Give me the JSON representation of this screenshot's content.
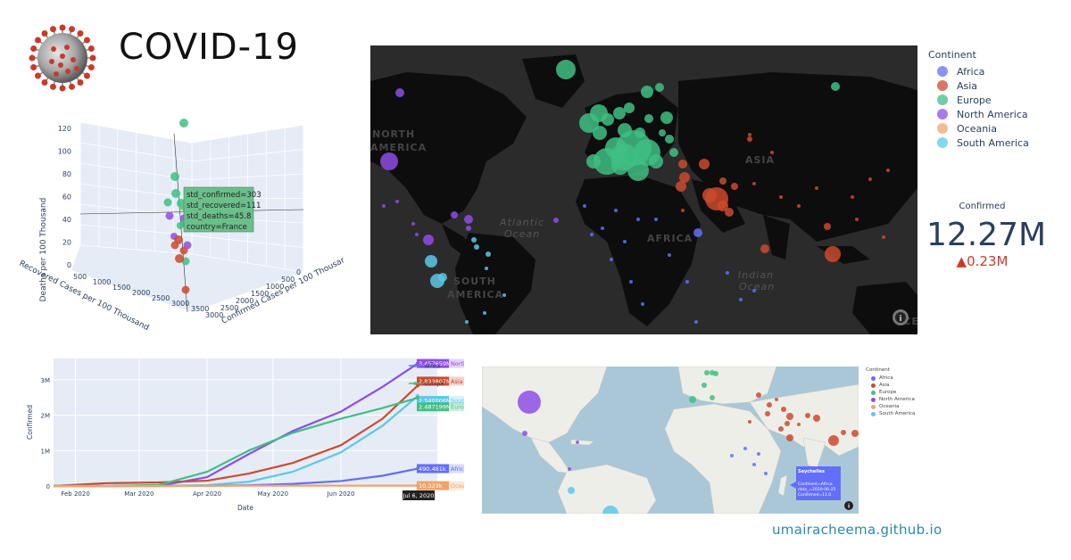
{
  "title": "COVID-19",
  "footer_link": "umairacheema.github.io",
  "colors": {
    "Africa": "#636efa",
    "Asia": "#cc4a2e",
    "Europe": "#3fbf84",
    "North America": "#8e4ee6",
    "Oceania": "#f0a46a",
    "South America": "#5cc8e8"
  },
  "legend": {
    "title": "Continent",
    "items": [
      "Africa",
      "Asia",
      "Europe",
      "North America",
      "Oceania",
      "South America"
    ]
  },
  "kpi": {
    "label": "Confirmed",
    "value": "12.27M",
    "delta": "▲0.23M"
  },
  "scatter3d": {
    "axis_z_label": "Deaths per 100 Thousand",
    "axis_x_label": "Recovered Cases per 100 Thousand",
    "axis_y_label": "Confirmed Cases per 100 Thousar",
    "z_ticks": [
      "120",
      "100",
      "80",
      "60",
      "40",
      "20",
      "0"
    ],
    "x_ticks": [
      "500",
      "1000",
      "1500",
      "2000",
      "2500",
      "3000",
      "3500"
    ],
    "y_ticks": [
      "0",
      "500",
      "1000",
      "1500",
      "2000",
      "2500",
      "3000"
    ],
    "tooltip": {
      "lines": [
        "std_confirmed=303",
        "std_recovered=111",
        "std_deaths=45.8",
        "country=France"
      ]
    }
  },
  "darkmap": {
    "labels": {
      "north_america": [
        "NORTH",
        "AMERICA"
      ],
      "atlantic": [
        "Atlantic",
        "Ocean"
      ],
      "africa": "AFRICA",
      "asia": "ASIA",
      "south_america": [
        "SOUTH",
        "AMERICA"
      ],
      "indian": [
        "Indian",
        "Ocean"
      ],
      "oce": "OCE"
    },
    "info_icon": "info-icon"
  },
  "chart_data": {
    "type": "line",
    "xlabel": "Date",
    "ylabel": "Confirmed",
    "x_ticks": [
      "Feb 2020",
      "Mar 2020",
      "Apr 2020",
      "May 2020",
      "Jun 2020",
      "Jul 6, 2020"
    ],
    "y_ticks": [
      "0",
      "1M",
      "2M",
      "3M"
    ],
    "ylim": [
      0,
      3600000
    ],
    "x": [
      "2020-01-22",
      "2020-02-15",
      "2020-03-10",
      "2020-04-01",
      "2020-04-20",
      "2020-05-10",
      "2020-06-01",
      "2020-06-20",
      "2020-07-06"
    ],
    "series": [
      {
        "name": "North America",
        "values": [
          0,
          20,
          1000,
          250000,
          900000,
          1550000,
          2100000,
          2800000,
          3457659
        ],
        "end_label": "3.457659M"
      },
      {
        "name": "Asia",
        "values": [
          600,
          80000,
          100000,
          150000,
          350000,
          650000,
          1150000,
          1900000,
          2833807
        ],
        "end_label": "2.833807M"
      },
      {
        "name": "South America",
        "values": [
          0,
          0,
          100,
          20000,
          120000,
          400000,
          950000,
          1700000,
          2540006
        ],
        "end_label": "2.540006M"
      },
      {
        "name": "Europe",
        "values": [
          0,
          100,
          30000,
          400000,
          1000000,
          1500000,
          1900000,
          2200000,
          2487199
        ],
        "end_label": "2.487199M"
      },
      {
        "name": "Africa",
        "values": [
          0,
          0,
          100,
          6000,
          20000,
          60000,
          140000,
          290000,
          490481
        ],
        "end_label": "490.481k"
      },
      {
        "name": "Oceania",
        "values": [
          0,
          0,
          50,
          5000,
          8000,
          8500,
          9000,
          9500,
          10323
        ],
        "end_label": "10.323k"
      }
    ],
    "hover_date_label": "Jul 6, 2020"
  },
  "lightmap": {
    "legend_title": "Continent",
    "legend_items": [
      "Africa",
      "Asia",
      "Europe",
      "North America",
      "Oceania",
      "South America"
    ],
    "tooltip": {
      "title": "Seychelles",
      "lines": [
        "Continent=Africa",
        "date_=2020-06-25",
        "Confirmed=11.0"
      ]
    }
  }
}
